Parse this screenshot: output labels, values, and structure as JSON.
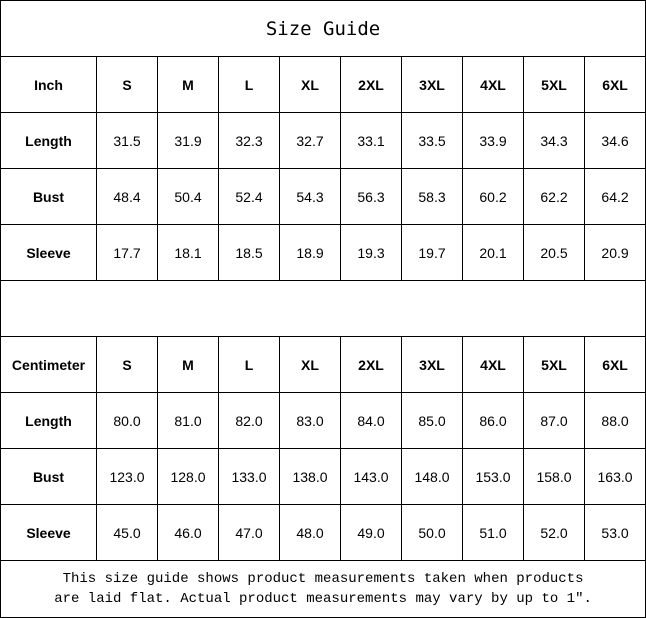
{
  "title": "Size Guide",
  "sizes": [
    "S",
    "M",
    "L",
    "XL",
    "2XL",
    "3XL",
    "4XL",
    "5XL",
    "6XL"
  ],
  "inch": {
    "unit_label": "Inch",
    "rows": [
      {
        "label": "Length",
        "values": [
          "31.5",
          "31.9",
          "32.3",
          "32.7",
          "33.1",
          "33.5",
          "33.9",
          "34.3",
          "34.6"
        ]
      },
      {
        "label": "Bust",
        "values": [
          "48.4",
          "50.4",
          "52.4",
          "54.3",
          "56.3",
          "58.3",
          "60.2",
          "62.2",
          "64.2"
        ]
      },
      {
        "label": "Sleeve",
        "values": [
          "17.7",
          "18.1",
          "18.5",
          "18.9",
          "19.3",
          "19.7",
          "20.1",
          "20.5",
          "20.9"
        ]
      }
    ]
  },
  "cm": {
    "unit_label": "Centimeter",
    "rows": [
      {
        "label": "Length",
        "values": [
          "80.0",
          "81.0",
          "82.0",
          "83.0",
          "84.0",
          "85.0",
          "86.0",
          "87.0",
          "88.0"
        ]
      },
      {
        "label": "Bust",
        "values": [
          "123.0",
          "128.0",
          "133.0",
          "138.0",
          "143.0",
          "148.0",
          "153.0",
          "158.0",
          "163.0"
        ]
      },
      {
        "label": "Sleeve",
        "values": [
          "45.0",
          "46.0",
          "47.0",
          "48.0",
          "49.0",
          "50.0",
          "51.0",
          "52.0",
          "53.0"
        ]
      }
    ]
  },
  "note_line1": "This size guide shows product measurements taken when products",
  "note_line2": "are laid flat. Actual product measurements may vary by up to 1″."
}
